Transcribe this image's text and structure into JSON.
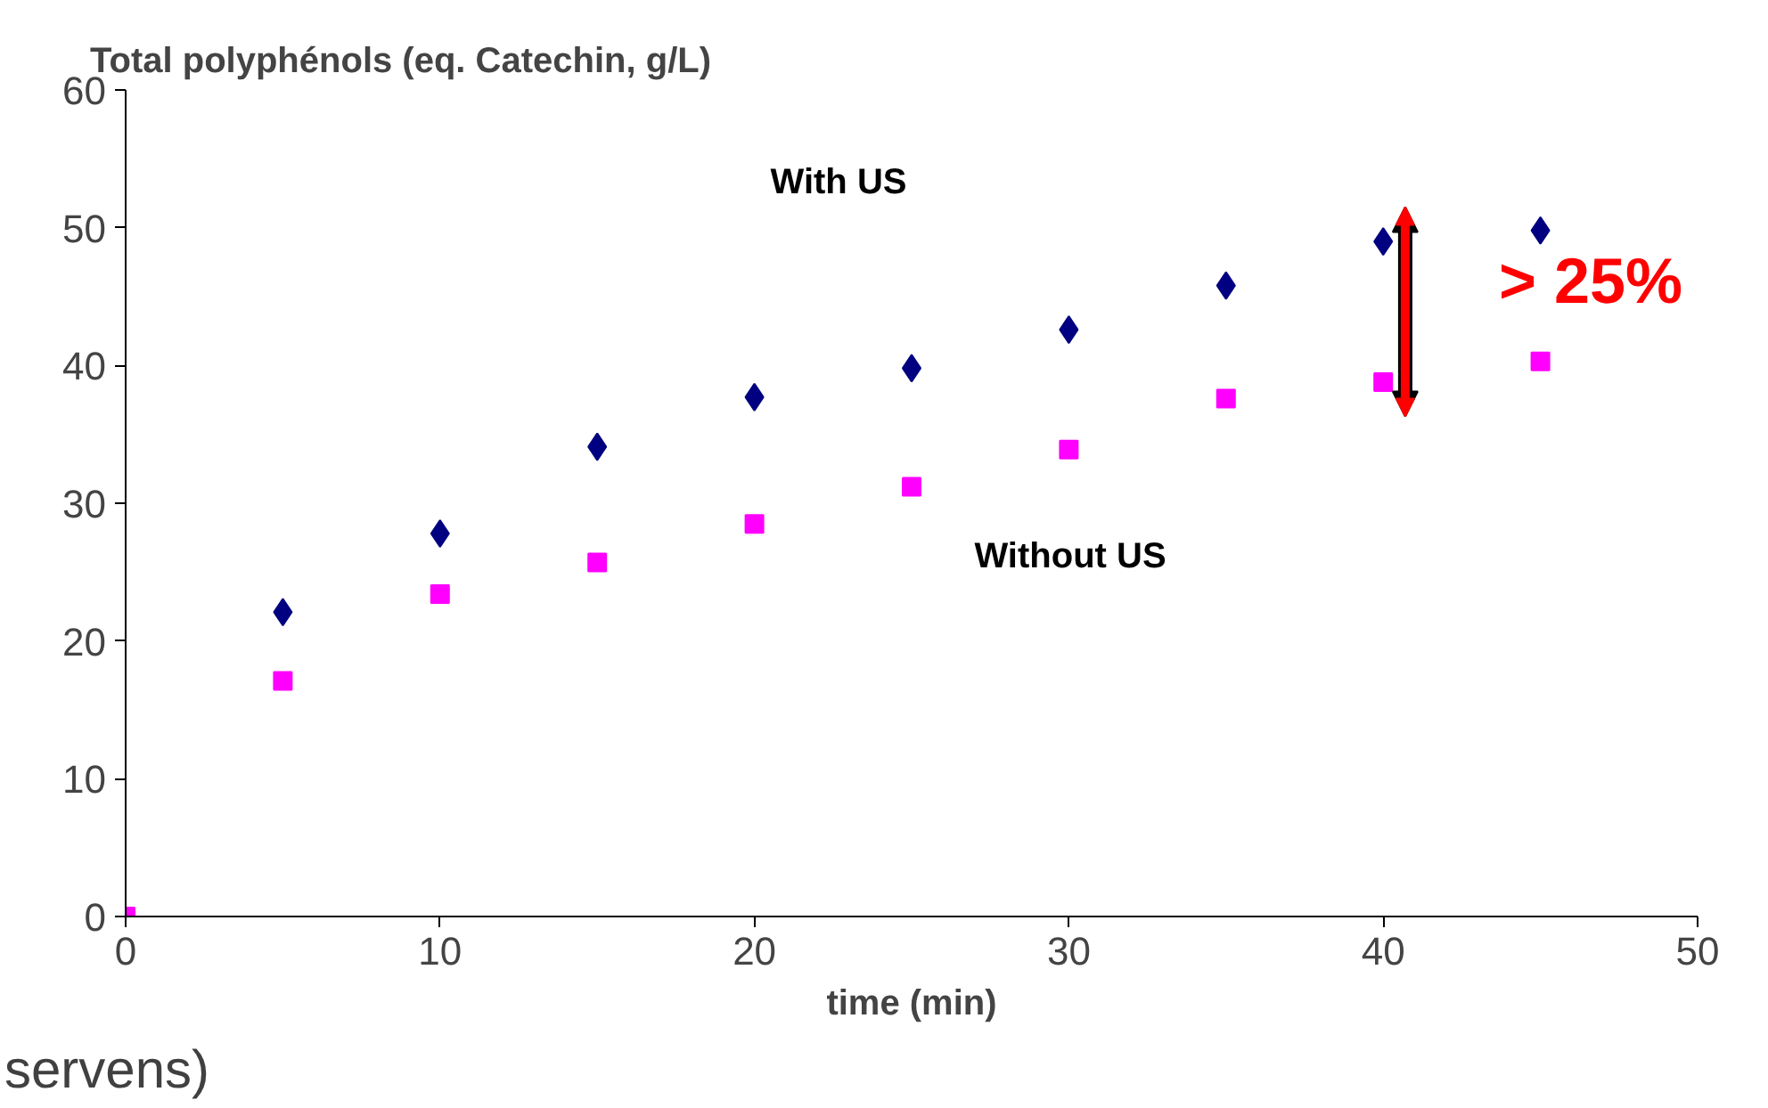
{
  "chart_data": {
    "type": "scatter",
    "ylabel": "Total polyphénols (eq. Catechin, g/L)",
    "xlabel": "time (min)",
    "x": [
      0,
      5,
      10,
      15,
      20,
      25,
      30,
      35,
      40,
      45
    ],
    "series": [
      {
        "color": "#000080",
        "marker": "diamond",
        "values": [
          null,
          22.1,
          27.8,
          34.1,
          37.7,
          39.8,
          42.6,
          45.8,
          49,
          49.8
        ]
      },
      {
        "color": "#ff00ff",
        "marker": "square",
        "values": [
          0,
          17.1,
          23.4,
          25.7,
          28.5,
          31.2,
          33.9,
          37.6,
          38.8,
          40.3
        ]
      }
    ],
    "xlim": [
      0,
      50
    ],
    "ylim": [
      0,
      60
    ],
    "xticks": [
      0,
      10,
      20,
      30,
      40,
      50
    ],
    "yticks": [
      0,
      10,
      20,
      30,
      40,
      50,
      60
    ],
    "grid": false,
    "annotations": [
      "With US",
      "Without US",
      "> 25%",
      "servens)"
    ]
  }
}
